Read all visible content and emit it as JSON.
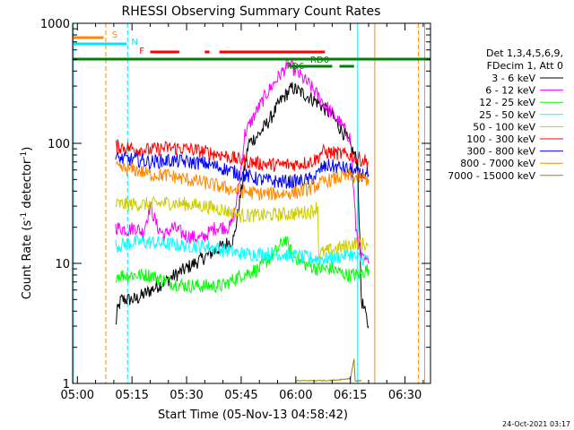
{
  "chart_data": {
    "type": "line",
    "title": "RHESSI Observing Summary Count Rates",
    "xlabel": "Start Time (05-Nov-13 04:58:42)",
    "ylabel_main": "Count Rate (s",
    "ylabel_sup1": "-1",
    "ylabel_mid": " detector",
    "ylabel_sup2": "-1",
    "ylabel_end": ")",
    "y_scale": "log",
    "ylim": [
      1,
      1000
    ],
    "xlim_minutes": [
      298.7,
      397.0
    ],
    "x_ticks": [
      {
        "minute": 300,
        "label": "05:00"
      },
      {
        "minute": 315,
        "label": "05:15"
      },
      {
        "minute": 330,
        "label": "05:30"
      },
      {
        "minute": 345,
        "label": "05:45"
      },
      {
        "minute": 360,
        "label": "06:00"
      },
      {
        "minute": 375,
        "label": "06:15"
      },
      {
        "minute": 390,
        "label": "06:30"
      }
    ],
    "y_ticks": [
      {
        "value": 1,
        "label": "1"
      },
      {
        "value": 10,
        "label": "10"
      },
      {
        "value": 100,
        "label": "100"
      },
      {
        "value": 1000,
        "label": "1000"
      }
    ],
    "legend_header": [
      "Det 1,3,4,5,6,9,",
      "FDecim 1, Att 0"
    ],
    "legend_placement": "right",
    "footer_date": "24-Oct-2021 03:17",
    "flags": [
      {
        "label": "S",
        "color": "#ff8800"
      },
      {
        "label": "N",
        "color": "#00e5ff"
      },
      {
        "label": "F",
        "color": "#ff0000"
      },
      {
        "label": "RD0",
        "color": "#008000"
      },
      {
        "label": "RD6",
        "color": "#008000"
      }
    ],
    "series": [
      {
        "name": "3 - 6 keV",
        "color": "#000000",
        "points": [
          [
            310.5,
            3
          ],
          [
            311,
            4
          ],
          [
            312,
            5
          ],
          [
            314,
            5
          ],
          [
            316,
            5
          ],
          [
            340,
            14
          ],
          [
            343,
            16
          ],
          [
            347,
            100
          ],
          [
            350,
            120
          ],
          [
            353,
            160
          ],
          [
            356,
            230
          ],
          [
            359,
            290
          ],
          [
            362,
            260
          ],
          [
            366,
            220
          ],
          [
            370,
            170
          ],
          [
            374,
            110
          ],
          [
            377,
            70
          ],
          [
            378,
            5
          ],
          [
            380,
            3
          ]
        ]
      },
      {
        "name": "6 - 12 keV",
        "color": "#ff00ff",
        "points": [
          [
            310.5,
            20
          ],
          [
            314,
            19
          ],
          [
            316,
            20
          ],
          [
            318,
            18
          ],
          [
            320,
            30
          ],
          [
            322,
            20
          ],
          [
            324,
            17
          ],
          [
            326,
            20
          ],
          [
            330,
            17
          ],
          [
            334,
            16
          ],
          [
            338,
            20
          ],
          [
            342,
            20
          ],
          [
            344,
            35
          ],
          [
            346,
            120
          ],
          [
            349,
            180
          ],
          [
            352,
            260
          ],
          [
            355,
            350
          ],
          [
            358,
            460
          ],
          [
            360,
            400
          ],
          [
            364,
            300
          ],
          [
            368,
            210
          ],
          [
            372,
            150
          ],
          [
            375,
            110
          ],
          [
            376.5,
            20
          ],
          [
            378,
            11
          ],
          [
            380,
            10
          ]
        ]
      },
      {
        "name": "12 - 25 keV",
        "color": "#00ff00",
        "points": [
          [
            310.5,
            8
          ],
          [
            316,
            8
          ],
          [
            320,
            8
          ],
          [
            325,
            7
          ],
          [
            330,
            6.5
          ],
          [
            335,
            6.5
          ],
          [
            340,
            6.5
          ],
          [
            345,
            8
          ],
          [
            350,
            9
          ],
          [
            355,
            13
          ],
          [
            357,
            16
          ],
          [
            359,
            12
          ],
          [
            362,
            10
          ],
          [
            366,
            9
          ],
          [
            370,
            9
          ],
          [
            374,
            8
          ],
          [
            377,
            8
          ],
          [
            380,
            9
          ]
        ]
      },
      {
        "name": "25 - 50 keV",
        "color": "#00ffff",
        "points": [
          [
            310.5,
            14
          ],
          [
            316,
            15
          ],
          [
            320,
            15
          ],
          [
            325,
            14.5
          ],
          [
            330,
            14
          ],
          [
            335,
            14
          ],
          [
            340,
            13
          ],
          [
            345,
            12
          ],
          [
            350,
            12
          ],
          [
            355,
            12
          ],
          [
            360,
            11.5
          ],
          [
            365,
            11
          ],
          [
            370,
            11
          ],
          [
            375,
            12
          ],
          [
            377,
            11
          ],
          [
            380,
            11
          ]
        ]
      },
      {
        "name": "50 - 100 keV",
        "color": "#cccc00",
        "points": [
          [
            310.5,
            31
          ],
          [
            316,
            31
          ],
          [
            320,
            31
          ],
          [
            325,
            32
          ],
          [
            330,
            31
          ],
          [
            335,
            30
          ],
          [
            340,
            28
          ],
          [
            345,
            25
          ],
          [
            350,
            25
          ],
          [
            355,
            25.5
          ],
          [
            360,
            26
          ],
          [
            364,
            27
          ],
          [
            365,
            28
          ],
          [
            366,
            30
          ],
          [
            366.3,
            12
          ],
          [
            370,
            13
          ],
          [
            374,
            14
          ],
          [
            377,
            15
          ],
          [
            380,
            14
          ]
        ]
      },
      {
        "name": "100 - 300 keV",
        "color": "#ff0000",
        "points": [
          [
            310.5,
            95
          ],
          [
            316,
            90
          ],
          [
            320,
            88
          ],
          [
            325,
            92
          ],
          [
            330,
            90
          ],
          [
            335,
            85
          ],
          [
            340,
            80
          ],
          [
            345,
            72
          ],
          [
            350,
            68
          ],
          [
            355,
            66
          ],
          [
            360,
            67
          ],
          [
            364,
            70
          ],
          [
            366,
            75
          ],
          [
            367,
            85
          ],
          [
            369,
            84
          ],
          [
            372,
            82
          ],
          [
            374,
            80
          ],
          [
            376,
            78
          ],
          [
            377,
            75
          ],
          [
            380,
            70
          ]
        ]
      },
      {
        "name": "300 - 800 keV",
        "color": "#0000ff",
        "points": [
          [
            310.5,
            75
          ],
          [
            316,
            73
          ],
          [
            320,
            70
          ],
          [
            325,
            72
          ],
          [
            330,
            70
          ],
          [
            335,
            68
          ],
          [
            340,
            62
          ],
          [
            345,
            55
          ],
          [
            350,
            50
          ],
          [
            355,
            48
          ],
          [
            360,
            48
          ],
          [
            364,
            50
          ],
          [
            366,
            55
          ],
          [
            367,
            62
          ],
          [
            369,
            65
          ],
          [
            372,
            63
          ],
          [
            375,
            60
          ],
          [
            377,
            55
          ],
          [
            380,
            55
          ]
        ]
      },
      {
        "name": "800 - 7000 keV",
        "color": "#ff8800",
        "points": [
          [
            310.5,
            62
          ],
          [
            316,
            60
          ],
          [
            320,
            55
          ],
          [
            325,
            54
          ],
          [
            330,
            50
          ],
          [
            335,
            47
          ],
          [
            340,
            43
          ],
          [
            345,
            40
          ],
          [
            350,
            38
          ],
          [
            355,
            38
          ],
          [
            360,
            39
          ],
          [
            364,
            42
          ],
          [
            366,
            45
          ],
          [
            368,
            48
          ],
          [
            370,
            50
          ],
          [
            372,
            52
          ],
          [
            375,
            53
          ],
          [
            377,
            52
          ],
          [
            380,
            50
          ]
        ]
      },
      {
        "name": "7000 - 15000 keV",
        "color": "#998800",
        "points": [
          [
            360,
            1.05
          ],
          [
            370,
            1.06
          ],
          [
            375,
            1.1
          ],
          [
            376,
            1.6
          ],
          [
            376.3,
            1.05
          ],
          [
            378,
            1.05
          ]
        ]
      }
    ]
  }
}
